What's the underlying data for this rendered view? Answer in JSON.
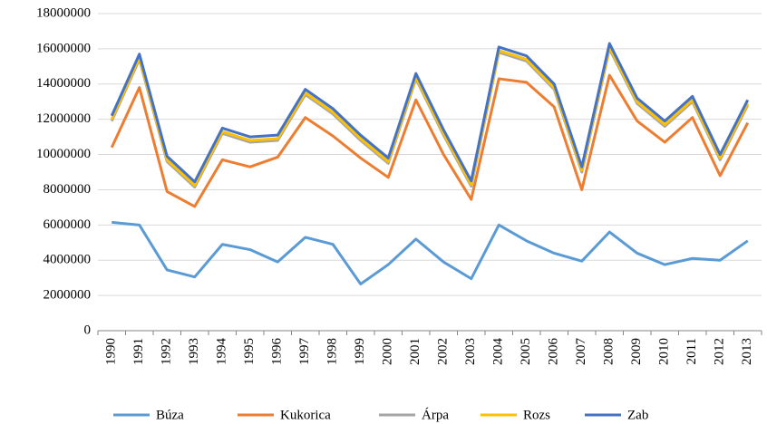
{
  "chart_data": {
    "type": "line",
    "stacked": true,
    "grid": true,
    "categories": [
      "1990",
      "1991",
      "1992",
      "1993",
      "1994",
      "1995",
      "1996",
      "1997",
      "1998",
      "1999",
      "2000",
      "2001",
      "2002",
      "2003",
      "2004",
      "2005",
      "2006",
      "2007",
      "2008",
      "2009",
      "2010",
      "2011",
      "2012",
      "2013"
    ],
    "ylim": [
      0,
      18000000
    ],
    "yticks": [
      0,
      2000000,
      4000000,
      6000000,
      8000000,
      10000000,
      12000000,
      14000000,
      16000000,
      18000000
    ],
    "series": [
      {
        "name": "Búza",
        "color": "#5b9bd5",
        "values": [
          6150000,
          6000000,
          3450000,
          3050000,
          4900000,
          4600000,
          3900000,
          5300000,
          4900000,
          2650000,
          3750000,
          5200000,
          3900000,
          2950000,
          6000000,
          5100000,
          4400000,
          3950000,
          5600000,
          4400000,
          3750000,
          4100000,
          4000000,
          5100000
        ]
      },
      {
        "name": "Kukorica",
        "color": "#ed7d31",
        "values": [
          4250000,
          7800000,
          4450000,
          4000000,
          4800000,
          4700000,
          5950000,
          6800000,
          6150000,
          7150000,
          4950000,
          7900000,
          6100000,
          4500000,
          8300000,
          9000000,
          8300000,
          4050000,
          8900000,
          7500000,
          6950000,
          8000000,
          4800000,
          6700000
        ]
      },
      {
        "name": "Árpa",
        "color": "#a5a5a5",
        "values": [
          1500000,
          1600000,
          1700000,
          1100000,
          1500000,
          1400000,
          950000,
          1300000,
          1250000,
          1000000,
          800000,
          1200000,
          1100000,
          750000,
          1500000,
          1200000,
          1000000,
          1000000,
          1500000,
          1000000,
          900000,
          900000,
          900000,
          1000000
        ]
      },
      {
        "name": "Rozs",
        "color": "#ffc000",
        "values": [
          100000,
          100000,
          100000,
          100000,
          100000,
          100000,
          100000,
          100000,
          100000,
          100000,
          100000,
          100000,
          100000,
          100000,
          100000,
          100000,
          100000,
          100000,
          100000,
          100000,
          100000,
          100000,
          100000,
          100000
        ]
      },
      {
        "name": "Zab",
        "color": "#4472c4",
        "values": [
          200000,
          200000,
          200000,
          200000,
          200000,
          200000,
          200000,
          200000,
          200000,
          200000,
          200000,
          200000,
          200000,
          200000,
          200000,
          200000,
          200000,
          200000,
          200000,
          200000,
          200000,
          200000,
          200000,
          200000
        ]
      }
    ]
  }
}
